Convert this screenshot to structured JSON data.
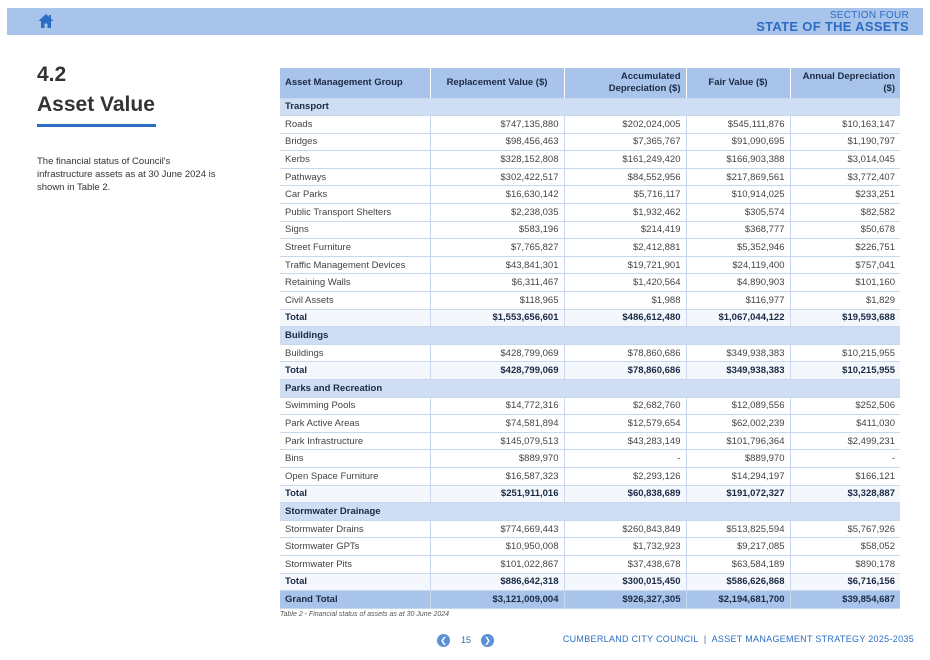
{
  "header": {
    "home_icon": "home-icon",
    "section_label": "SECTION FOUR",
    "section_title": "STATE OF THE ASSETS",
    "accent_color": "#2b6cc4",
    "bar_color": "#a9c4eb"
  },
  "section": {
    "number": "4.2",
    "title": "Asset Value",
    "intro": "The financial status of Council's infrastructure assets as at 30 June 2024 is shown in Table 2."
  },
  "table": {
    "columns": [
      "Asset Management Group",
      "Replacement Value ($)",
      "Accumulated Depreciation ($)",
      "Fair Value ($)",
      "Annual Depreciation ($)"
    ],
    "groups": [
      {
        "name": "Transport",
        "rows": [
          [
            "Roads",
            "$747,135,880",
            "$202,024,005",
            "$545,111,876",
            "$10,163,147"
          ],
          [
            "Bridges",
            "$98,456,463",
            "$7,365,767",
            "$91,090,695",
            "$1,190,797"
          ],
          [
            "Kerbs",
            "$328,152,808",
            "$161,249,420",
            "$166,903,388",
            "$3,014,045"
          ],
          [
            "Pathways",
            "$302,422,517",
            "$84,552,956",
            "$217,869,561",
            "$3,772,407"
          ],
          [
            "Car Parks",
            "$16,630,142",
            "$5,716,117",
            "$10,914,025",
            "$233,251"
          ],
          [
            "Public Transport Shelters",
            "$2,238,035",
            "$1,932,462",
            "$305,574",
            "$82,582"
          ],
          [
            "Signs",
            "$583,196",
            "$214,419",
            "$368,777",
            "$50,678"
          ],
          [
            "Street Furniture",
            "$7,765,827",
            "$2,412,881",
            "$5,352,946",
            "$226,751"
          ],
          [
            "Traffic Management Devices",
            "$43,841,301",
            "$19,721,901",
            "$24,119,400",
            "$757,041"
          ],
          [
            "Retaining Walls",
            "$6,311,467",
            "$1,420,564",
            "$4,890,903",
            "$101,160"
          ],
          [
            "Civil Assets",
            "$118,965",
            "$1,988",
            "$116,977",
            "$1,829"
          ]
        ],
        "total": [
          "Total",
          "$1,553,656,601",
          "$486,612,480",
          "$1,067,044,122",
          "$19,593,688"
        ]
      },
      {
        "name": "Buildings",
        "rows": [
          [
            "Buildings",
            "$428,799,069",
            "$78,860,686",
            "$349,938,383",
            "$10,215,955"
          ]
        ],
        "total": [
          "Total",
          "$428,799,069",
          "$78,860,686",
          "$349,938,383",
          "$10,215,955"
        ]
      },
      {
        "name": "Parks and Recreation",
        "rows": [
          [
            "Swimming Pools",
            "$14,772,316",
            "$2,682,760",
            "$12,089,556",
            "$252,506"
          ],
          [
            "Park Active Areas",
            "$74,581,894",
            "$12,579,654",
            "$62,002,239",
            "$411,030"
          ],
          [
            "Park Infrastructure",
            "$145,079,513",
            "$43,283,149",
            "$101,796,364",
            "$2,499,231"
          ],
          [
            "Bins",
            "$889,970",
            "-",
            "$889,970",
            "-"
          ],
          [
            "Open Space Furniture",
            "$16,587,323",
            "$2,293,126",
            "$14,294,197",
            "$166,121"
          ]
        ],
        "total": [
          "Total",
          "$251,911,016",
          "$60,838,689",
          "$191,072,327",
          "$3,328,887"
        ]
      },
      {
        "name": "Stormwater Drainage",
        "rows": [
          [
            "Stormwater Drains",
            "$774,669,443",
            "$260,843,849",
            "$513,825,594",
            "$5,767,926"
          ],
          [
            "Stormwater GPTs",
            "$10,950,008",
            "$1,732,923",
            "$9,217,085",
            "$58,052"
          ],
          [
            "Stormwater Pits",
            "$101,022,867",
            "$37,438,678",
            "$63,584,189",
            "$890,178"
          ]
        ],
        "total": [
          "Total",
          "$886,642,318",
          "$300,015,450",
          "$586,626,868",
          "$6,716,156"
        ]
      }
    ],
    "grand_total": [
      "Grand Total",
      "$3,121,009,004",
      "$926,327,305",
      "$2,194,681,700",
      "$39,854,687"
    ],
    "caption": "Table 2 - Financial status of assets as at 30 June 2024"
  },
  "pager": {
    "page_number": "15",
    "prev_icon": "chevron-left-icon",
    "next_icon": "chevron-right-icon"
  },
  "footer": {
    "text": "CUMBERLAND CITY COUNCIL  |  ASSET MANAGEMENT STRATEGY 2025-2035"
  }
}
